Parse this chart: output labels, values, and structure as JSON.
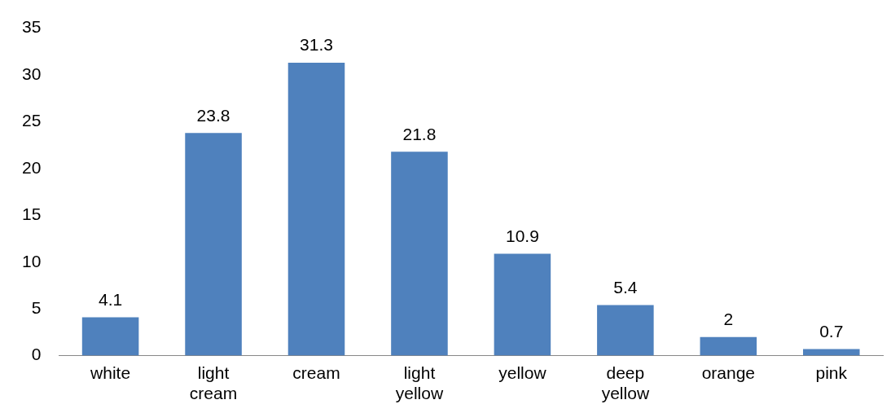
{
  "chart_data": {
    "type": "bar",
    "categories": [
      "white",
      "light cream",
      "cream",
      "light yellow",
      "yellow",
      "deep yellow",
      "orange",
      "pink"
    ],
    "values": [
      4.1,
      23.8,
      31.3,
      21.8,
      10.9,
      5.4,
      2,
      0.7
    ],
    "color": "#4f81bd",
    "ylim": [
      0,
      35
    ],
    "yticks": [
      0,
      5,
      10,
      15,
      20,
      25,
      30,
      35
    ],
    "grid": false,
    "legend": false,
    "data_labels": true
  }
}
